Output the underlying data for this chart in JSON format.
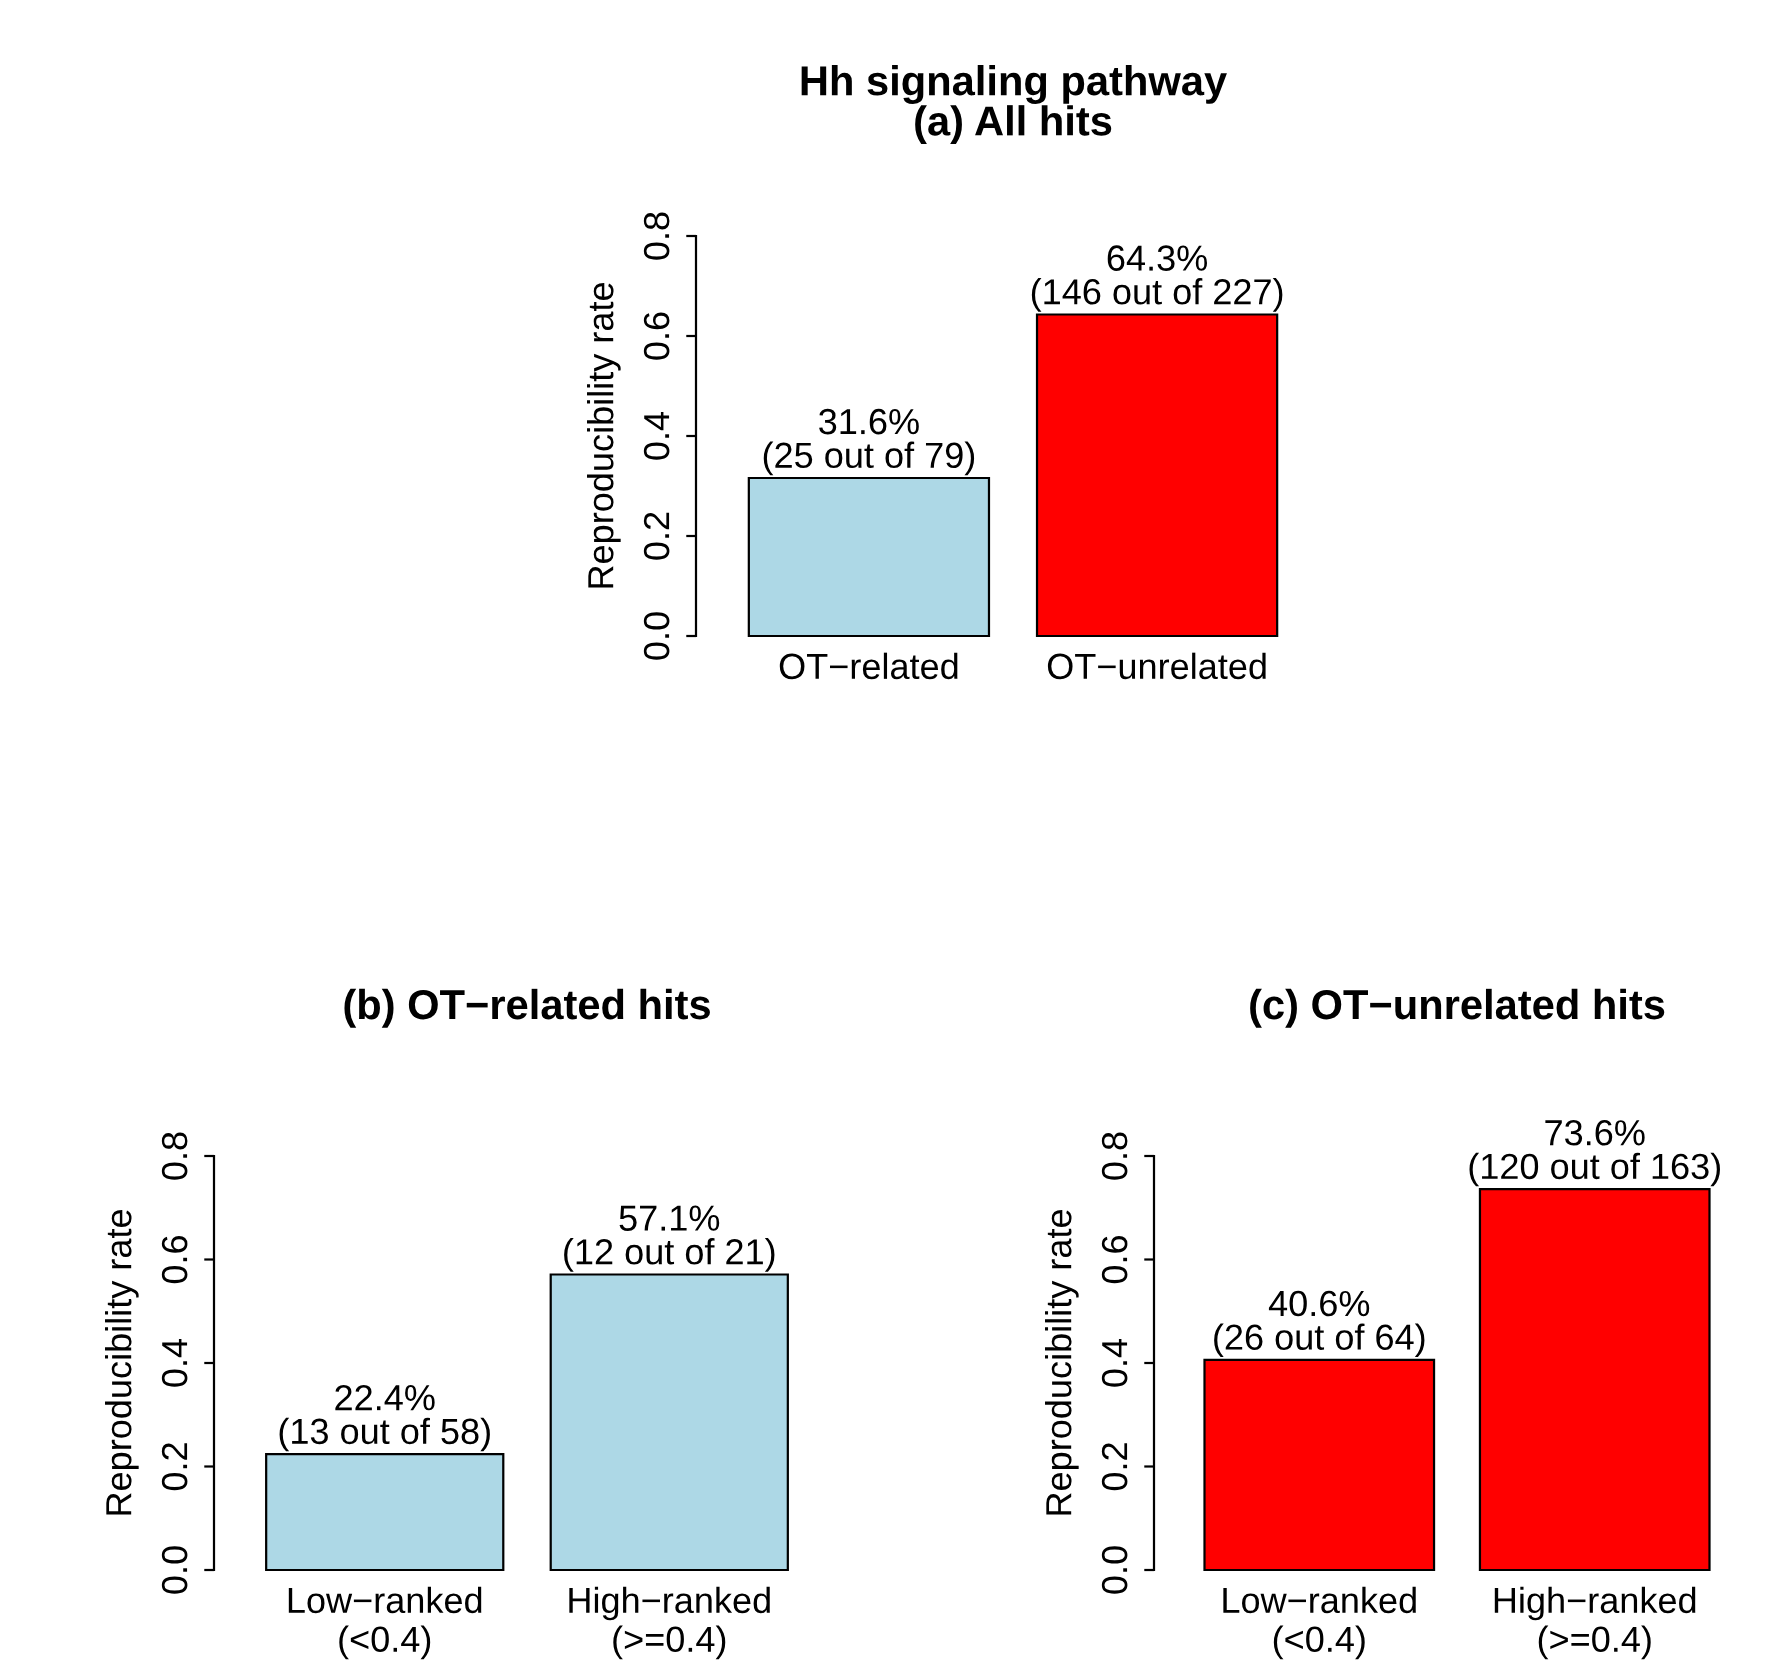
{
  "chart_data": [
    {
      "type": "bar",
      "title": "Hh signaling pathway",
      "subtitle": "(a) All hits",
      "ylabel": "Reproducibility rate",
      "categories": [
        "OT−related",
        "OT−unrelated"
      ],
      "values": [
        0.316,
        0.643
      ],
      "colors": [
        "#add8e6",
        "#ff0000"
      ],
      "value_labels": [
        "31.6%\n(25 out of 79)",
        "64.3%\n(146 out of 227)"
      ],
      "ylim": [
        0,
        0.8
      ],
      "yticks": [
        {
          "value": 0,
          "label": "0.0"
        },
        {
          "value": 0.2,
          "label": "0.2"
        },
        {
          "value": 0.4,
          "label": "0.4"
        },
        {
          "value": 0.6,
          "label": "0.6"
        },
        {
          "value": 0.8,
          "label": "0.8"
        }
      ],
      "grid": false,
      "legend": false
    },
    {
      "type": "bar",
      "title": "(b) OT−related hits",
      "ylabel": "Reproducibility rate",
      "categories": [
        "Low−ranked\n(<0.4)",
        "High−ranked\n(>=0.4)"
      ],
      "values": [
        0.224,
        0.571
      ],
      "colors": [
        "#add8e6",
        "#add8e6"
      ],
      "value_labels": [
        "22.4%\n(13 out of 58)",
        "57.1%\n(12 out of 21)"
      ],
      "ylim": [
        0,
        0.8
      ],
      "yticks": [
        {
          "value": 0,
          "label": "0.0"
        },
        {
          "value": 0.2,
          "label": "0.2"
        },
        {
          "value": 0.4,
          "label": "0.4"
        },
        {
          "value": 0.6,
          "label": "0.6"
        },
        {
          "value": 0.8,
          "label": "0.8"
        }
      ],
      "grid": false,
      "legend": false
    },
    {
      "type": "bar",
      "title": "(c) OT−unrelated hits",
      "ylabel": "Reproducibility rate",
      "categories": [
        "Low−ranked\n(<0.4)",
        "High−ranked\n(>=0.4)"
      ],
      "values": [
        0.406,
        0.736
      ],
      "colors": [
        "#ff0000",
        "#ff0000"
      ],
      "value_labels": [
        "40.6%\n(26 out of 64)",
        "73.6%\n(120 out of 163)"
      ],
      "ylim": [
        0,
        0.8
      ],
      "yticks": [
        {
          "value": 0,
          "label": "0.0"
        },
        {
          "value": 0.2,
          "label": "0.2"
        },
        {
          "value": 0.4,
          "label": "0.4"
        },
        {
          "value": 0.6,
          "label": "0.6"
        },
        {
          "value": 0.8,
          "label": "0.8"
        }
      ],
      "grid": false,
      "legend": false
    }
  ]
}
